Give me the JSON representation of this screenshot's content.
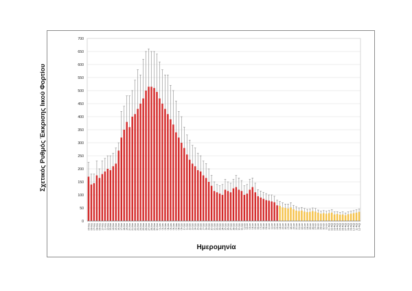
{
  "chart_data": {
    "type": "bar",
    "ylabel": "Σχετικός Ρυθμός Έκκρισης Ιικού Φορτίου",
    "xlabel": "Ημερομηνία",
    "ylim": [
      0,
      700
    ],
    "y_ticks": [
      0,
      50,
      100,
      150,
      200,
      250,
      300,
      350,
      400,
      450,
      500,
      550,
      600,
      650,
      700
    ],
    "grid": true,
    "categories": [
      "05-Νοε",
      "06-Νοε",
      "07-Νοε",
      "08-Νοε",
      "09-Νοε",
      "10-Νοε",
      "11-Νοε",
      "12-Νοε",
      "13-Νοε",
      "14-Νοε",
      "15-Νοε",
      "16-Νοε",
      "17-Νοε",
      "18-Νοε",
      "19-Νοε",
      "20-Νοε",
      "21-Νοε",
      "22-Νοε",
      "23-Νοε",
      "24-Νοε",
      "25-Νοε",
      "26-Νοε",
      "27-Νοε",
      "28-Νοε",
      "29-Νοε",
      "30-Νοε",
      "01-Δεκ",
      "02-Δεκ",
      "03-Δεκ",
      "04-Δεκ",
      "05-Δεκ",
      "06-Δεκ",
      "07-Δεκ",
      "08-Δεκ",
      "09-Δεκ",
      "10-Δεκ",
      "11-Δεκ",
      "12-Δεκ",
      "13-Δεκ",
      "14-Δεκ",
      "15-Δεκ",
      "16-Δεκ",
      "17-Δεκ",
      "18-Δεκ",
      "19-Δεκ",
      "20-Δεκ",
      "21-Δεκ",
      "22-Δεκ",
      "23-Δεκ",
      "24-Δεκ",
      "25-Δεκ",
      "26-Δεκ",
      "27-Δεκ",
      "28-Δεκ",
      "29-Δεκ",
      "30-Δεκ",
      "31-Δεκ",
      "01-Ιαν",
      "02-Ιαν",
      "03-Ιαν",
      "04-Ιαν",
      "05-Ιαν",
      "06-Ιαν",
      "07-Ιαν",
      "08-Ιαν",
      "09-Ιαν",
      "10-Ιαν",
      "11-Ιαν",
      "12-Ιαν",
      "13-Ιαν",
      "14-Ιαν",
      "15-Ιαν",
      "16-Ιαν",
      "17-Ιαν",
      "18-Ιαν",
      "19-Ιαν",
      "20-Ιαν",
      "21-Ιαν",
      "22-Ιαν",
      "23-Ιαν",
      "24-Ιαν",
      "25-Ιαν",
      "26-Ιαν",
      "27-Ιαν",
      "28-Ιαν",
      "29-Ιαν",
      "30-Ιαν",
      "31-Ιαν",
      "01-Φεβ",
      "02-Φεβ",
      "03-Φεβ",
      "04-Φεβ",
      "05-Φεβ",
      "06-Φεβ",
      "07-Φεβ",
      "08-Φεβ",
      "09-Φεβ",
      "10-Φεβ",
      "11-Φεβ",
      "12-Φεβ"
    ],
    "values": [
      170,
      140,
      145,
      175,
      165,
      180,
      190,
      200,
      195,
      210,
      220,
      270,
      320,
      350,
      380,
      360,
      400,
      410,
      430,
      450,
      470,
      500,
      515,
      515,
      510,
      495,
      470,
      450,
      430,
      410,
      390,
      370,
      340,
      320,
      300,
      280,
      255,
      235,
      220,
      210,
      195,
      190,
      175,
      165,
      150,
      135,
      115,
      110,
      105,
      100,
      120,
      115,
      110,
      125,
      130,
      120,
      115,
      100,
      105,
      120,
      130,
      110,
      95,
      90,
      85,
      80,
      78,
      75,
      72,
      60,
      58,
      52,
      50,
      48,
      52,
      45,
      40,
      38,
      40,
      36,
      34,
      35,
      38,
      36,
      32,
      28,
      30,
      28,
      30,
      32,
      25,
      27,
      24,
      25,
      22,
      26,
      28,
      30,
      32,
      35
    ],
    "error_upper": [
      225,
      180,
      180,
      230,
      200,
      230,
      240,
      250,
      250,
      260,
      280,
      300,
      420,
      440,
      480,
      480,
      500,
      540,
      580,
      560,
      620,
      650,
      660,
      650,
      650,
      640,
      610,
      580,
      560,
      560,
      520,
      500,
      460,
      420,
      400,
      360,
      330,
      310,
      290,
      280,
      260,
      250,
      230,
      220,
      200,
      175,
      150,
      140,
      135,
      140,
      160,
      150,
      145,
      160,
      175,
      165,
      155,
      135,
      140,
      160,
      165,
      145,
      120,
      115,
      110,
      105,
      100,
      100,
      95,
      80,
      75,
      70,
      65,
      65,
      70,
      60,
      55,
      50,
      52,
      48,
      45,
      46,
      50,
      48,
      42,
      38,
      40,
      38,
      40,
      44,
      35,
      36,
      33,
      35,
      31,
      35,
      38,
      40,
      43,
      46
    ],
    "series_colors": {
      "red": "#d42a2a",
      "yellow": "#f5c24a",
      "error_bar": "#8a8a8a"
    },
    "color_split_index": 70
  }
}
